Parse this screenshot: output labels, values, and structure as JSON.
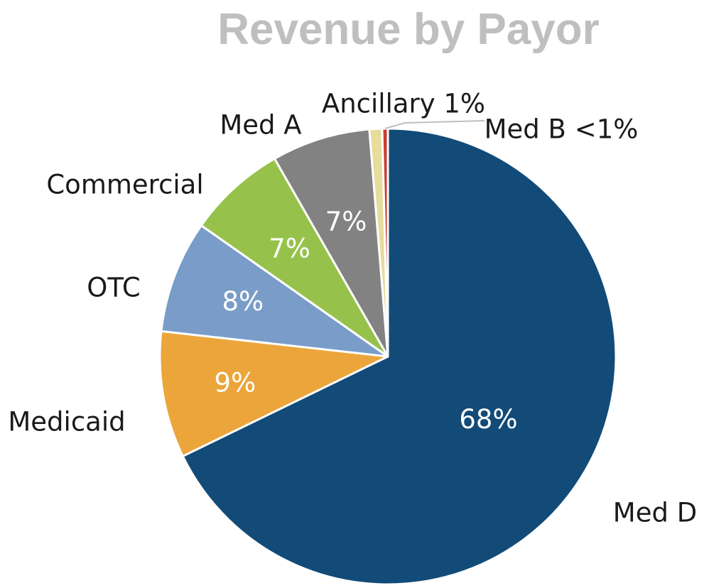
{
  "chart_data": {
    "type": "pie",
    "title": "Revenue by Payor",
    "title_color": "#bfbfbf",
    "start_angle_deg": 0,
    "direction": "clockwise",
    "slices": [
      {
        "key": "med_d",
        "label": "Med D",
        "value": 68,
        "value_label": "68%",
        "color": "#124b78",
        "label_style": "outside"
      },
      {
        "key": "medicaid",
        "label": "Medicaid",
        "value": 9,
        "value_label": "9%",
        "color": "#eba53a",
        "label_style": "outside"
      },
      {
        "key": "otc",
        "label": "OTC",
        "value": 8,
        "value_label": "8%",
        "color": "#7a9cc8",
        "label_style": "outside"
      },
      {
        "key": "commercial",
        "label": "Commercial",
        "value": 7,
        "value_label": "7%",
        "color": "#96c24b",
        "label_style": "outside"
      },
      {
        "key": "med_a",
        "label": "Med A",
        "value": 7,
        "value_label": "7%",
        "color": "#828282",
        "label_style": "outside"
      },
      {
        "key": "ancillary",
        "label": "Ancillary 1%",
        "value": 0.9,
        "value_label": "",
        "color": "#e6dc9c",
        "label_style": "outside-combined"
      },
      {
        "key": "med_b",
        "label": "Med B <1%",
        "value": 0.4,
        "value_label": "",
        "color": "#c83c32",
        "label_style": "leader-line"
      }
    ]
  }
}
